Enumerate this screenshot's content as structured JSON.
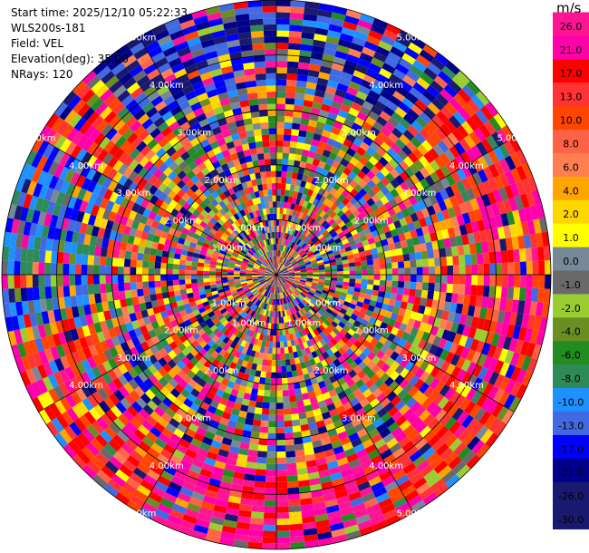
{
  "header": {
    "start_time": "Start time: 2025/12/10 05:22:33",
    "station": "WLS200s-181",
    "field": "Field: VEL",
    "elevation": "Elevation(deg): 35.00",
    "nrays": "NRays: 120"
  },
  "chart_data": {
    "type": "ppi",
    "field": "VEL",
    "nrays": 120,
    "range_rings_km": [
      1,
      2,
      3,
      4,
      5
    ],
    "range_labels": [
      "1.00km",
      "2.00km",
      "3.00km",
      "4.00km",
      "5.00km"
    ],
    "colorbar": {
      "unit": "m/s",
      "ticks": [
        "26.0",
        "21.0",
        "17.0",
        "13.0",
        "10.0",
        "8.0",
        "6.0",
        "4.0",
        "2.0",
        "1.0",
        "0.0",
        "-1.0",
        "-2.0",
        "-4.0",
        "-6.0",
        "-8.0",
        "-10.0",
        "-13.0",
        "-17.0",
        "-21.0",
        "-26.0",
        "-30.0"
      ],
      "colors": [
        "#ff1493",
        "#ff00aa",
        "#ff0000",
        "#ff3333",
        "#ff4500",
        "#ff6347",
        "#ff7f50",
        "#ffa500",
        "#ffd700",
        "#ffff00",
        "#778899",
        "#696969",
        "#9acd32",
        "#6b8e23",
        "#228b22",
        "#2e8b57",
        "#1e90ff",
        "#4169e1",
        "#0000ff",
        "#00008b",
        "#191970",
        "#191970"
      ]
    }
  }
}
